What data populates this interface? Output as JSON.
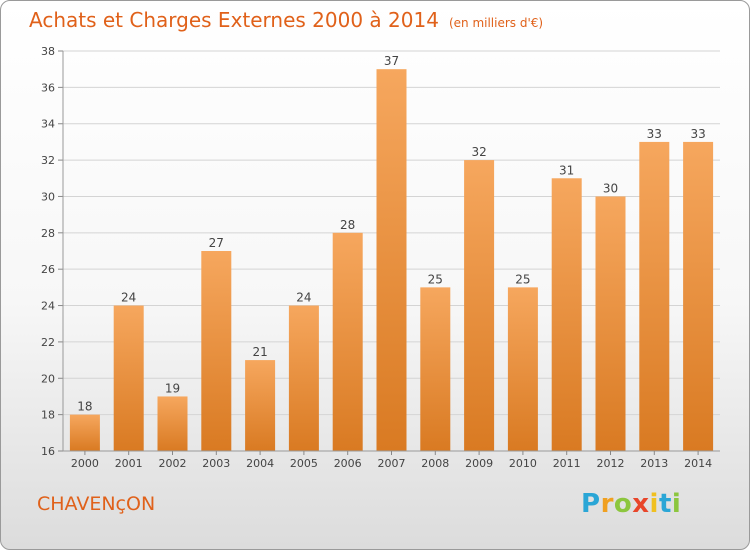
{
  "header": {
    "title": "Achats et Charges Externes 2000 à 2014",
    "unit": "(en milliers d'€)"
  },
  "footer": {
    "commune": "CHAVENçON",
    "logo_letters": [
      "P",
      "r",
      "o",
      "x",
      "i",
      "t",
      "i"
    ],
    "logo_colors": [
      "#2aa6d6",
      "#f0a020",
      "#8cc63e",
      "#e8462a",
      "#f0c020",
      "#2aa6d6",
      "#8cc63e"
    ]
  },
  "colors": {
    "bar_light": "#f6a75e",
    "bar_dark": "#d97a22",
    "title": "#e0611a"
  },
  "chart_data": {
    "type": "bar",
    "title": "Achats et Charges Externes 2000 à 2014",
    "categories": [
      "2000",
      "2001",
      "2002",
      "2003",
      "2004",
      "2005",
      "2006",
      "2007",
      "2008",
      "2009",
      "2010",
      "2011",
      "2012",
      "2013",
      "2014"
    ],
    "values": [
      18,
      24,
      19,
      27,
      21,
      24,
      28,
      37,
      25,
      32,
      25,
      31,
      30,
      33,
      33
    ],
    "data_labels": [
      "18",
      "24",
      "19",
      "27",
      "21",
      "24",
      "28",
      "37",
      "25",
      "32",
      "25",
      "31",
      "30",
      "33",
      "33"
    ],
    "ylim": [
      16,
      38
    ],
    "yticks": [
      16,
      18,
      20,
      22,
      24,
      26,
      28,
      30,
      32,
      34,
      36,
      38
    ],
    "grid": true,
    "legend": "none"
  }
}
